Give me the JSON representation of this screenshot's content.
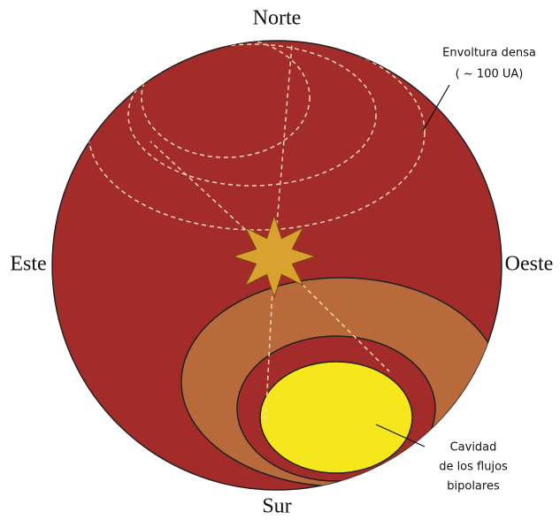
{
  "directions": {
    "north": "Norte",
    "south": "Sur",
    "east": "Este",
    "west": "Oeste"
  },
  "annotations": {
    "envelope": {
      "lines": [
        "Envoltura densa",
        "( ~ 100 UA)"
      ]
    },
    "cavity": {
      "lines": [
        "Cavidad",
        "de los flujos",
        "bipolares"
      ]
    }
  }
}
